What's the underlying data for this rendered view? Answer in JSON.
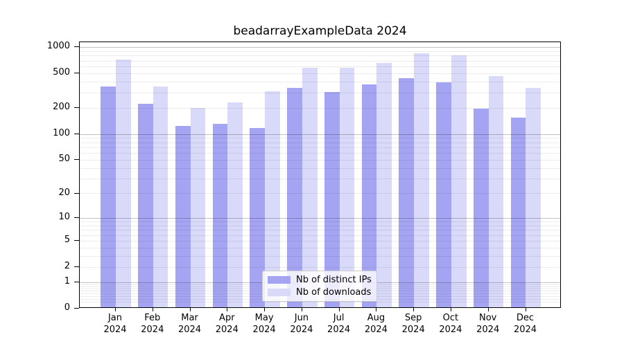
{
  "title": "beadarrayExampleData 2024",
  "legend": {
    "items": [
      {
        "label": "Nb of distinct IPs",
        "color": "#a4a4f2"
      },
      {
        "label": "Nb of downloads",
        "color": "#d9d9f9"
      }
    ]
  },
  "chart_data": {
    "type": "bar",
    "title": "beadarrayExampleData 2024",
    "categories": [
      "Jan",
      "Feb",
      "Mar",
      "Apr",
      "May",
      "Jun",
      "Jul",
      "Aug",
      "Sep",
      "Oct",
      "Nov",
      "Dec"
    ],
    "x_year": "2024",
    "series": [
      {
        "name": "Nb of distinct IPs",
        "color": "#a4a4f2",
        "values": [
          340,
          215,
          120,
          127,
          113,
          328,
          293,
          357,
          425,
          383,
          188,
          149
        ]
      },
      {
        "name": "Nb of downloads",
        "color": "#d9d9f9",
        "values": [
          695,
          340,
          193,
          222,
          300,
          555,
          560,
          640,
          815,
          770,
          448,
          330
        ]
      }
    ],
    "yscale": "log1p",
    "y_ticks": [
      1000,
      500,
      200,
      100,
      50,
      20,
      10,
      5,
      2,
      1,
      0
    ],
    "ylim": [
      0,
      1100
    ],
    "grid": "horizontal",
    "legend_position": "lower center"
  }
}
